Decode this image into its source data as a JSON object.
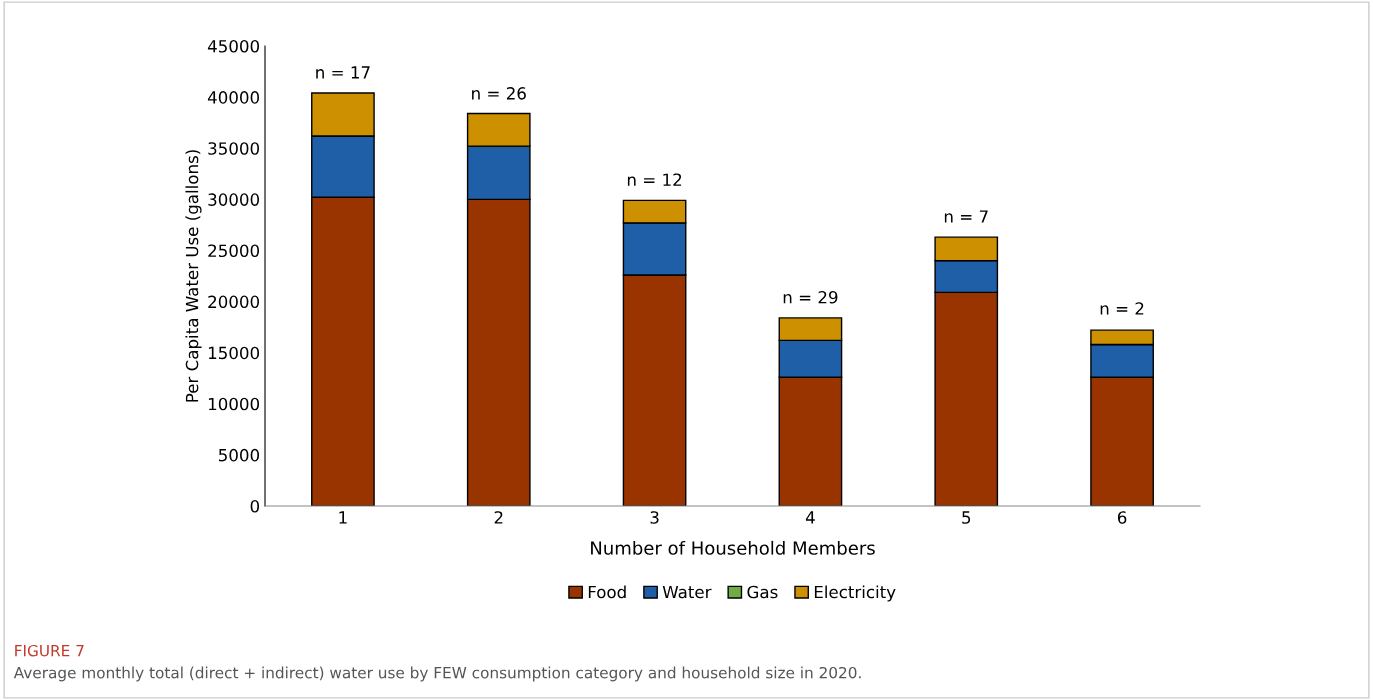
{
  "chart_data": {
    "type": "bar",
    "stacked": true,
    "xlabel": "Number of Household Members",
    "ylabel": "Per Capita Water Use (gallons)",
    "categories": [
      "1",
      "2",
      "3",
      "4",
      "5",
      "6"
    ],
    "series": [
      {
        "name": "Food",
        "color": "#993300",
        "values": [
          30200,
          30000,
          22600,
          12600,
          20900,
          12600
        ]
      },
      {
        "name": "Water",
        "color": "#1f5fa8",
        "values": [
          6000,
          5200,
          5100,
          3600,
          3100,
          3200
        ]
      },
      {
        "name": "Gas",
        "color": "#70ad47",
        "values": [
          0,
          0,
          0,
          0,
          0,
          0
        ]
      },
      {
        "name": "Electricity",
        "color": "#cc9000",
        "values": [
          4200,
          3200,
          2200,
          2200,
          2300,
          1400
        ]
      }
    ],
    "ylim": [
      0,
      45000
    ],
    "yticks": [
      0,
      5000,
      10000,
      15000,
      20000,
      25000,
      30000,
      35000,
      40000,
      45000
    ],
    "legend": "bottom",
    "grid": false,
    "annotations": [
      {
        "text": "n = 17",
        "x": "1",
        "y": 40400
      },
      {
        "text": "n = 26",
        "x": "2",
        "y": 38350
      },
      {
        "text": "n = 12",
        "x": "3",
        "y": 29900
      },
      {
        "text": "n = 29",
        "x": "4",
        "y": 18400
      },
      {
        "text": "n = 7",
        "x": "5",
        "y": 26300
      },
      {
        "text": "n = 2",
        "x": "6",
        "y": 17300
      },
      "FIGURE 7",
      "Average monthly total (direct + indirect) water use by FEW consumption category and household size in 2020."
    ]
  }
}
